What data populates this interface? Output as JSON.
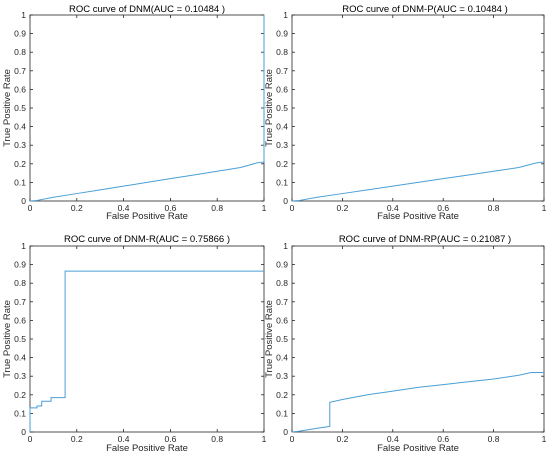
{
  "figure": {
    "line_color": "#4a9fd5",
    "axis_color": "#262626"
  },
  "chart_data": [
    {
      "type": "line",
      "title": "ROC curve of DNM(AUC = 0.10484 )",
      "xlabel": "False Positive Rate",
      "ylabel": "True Positive Rate",
      "xlim": [
        0,
        1
      ],
      "ylim": [
        0,
        1
      ],
      "xticks": [
        "0",
        "0.2",
        "0.4",
        "0.6",
        "0.8",
        "1"
      ],
      "yticks": [
        "0",
        "0.1",
        "0.2",
        "0.3",
        "0.4",
        "0.5",
        "0.6",
        "0.7",
        "0.8",
        "0.9",
        "1"
      ],
      "grid": false,
      "series": [
        {
          "x": [
            0,
            0.03,
            0.1,
            0.2,
            0.3,
            0.4,
            0.5,
            0.6,
            0.7,
            0.8,
            0.9,
            0.97,
            1,
            1
          ],
          "y": [
            0,
            0.003,
            0.02,
            0.04,
            0.06,
            0.08,
            0.1,
            0.12,
            0.14,
            0.16,
            0.18,
            0.205,
            0.21,
            1
          ]
        }
      ]
    },
    {
      "type": "line",
      "title": "ROC curve of DNM-P(AUC = 0.10484 )",
      "xlabel": "False Positive Rate",
      "ylabel": "True Positive Rate",
      "xlim": [
        0,
        1
      ],
      "ylim": [
        0,
        1
      ],
      "xticks": [
        "0",
        "0.2",
        "0.4",
        "0.6",
        "0.8",
        "1"
      ],
      "yticks": [
        "0",
        "0.1",
        "0.2",
        "0.3",
        "0.4",
        "0.5",
        "0.6",
        "0.7",
        "0.8",
        "0.9",
        "1"
      ],
      "grid": false,
      "series": [
        {
          "x": [
            0,
            0.03,
            0.1,
            0.2,
            0.3,
            0.4,
            0.5,
            0.6,
            0.7,
            0.8,
            0.9,
            0.97,
            1
          ],
          "y": [
            0,
            0.003,
            0.02,
            0.04,
            0.06,
            0.08,
            0.1,
            0.12,
            0.14,
            0.16,
            0.18,
            0.205,
            0.21
          ]
        }
      ]
    },
    {
      "type": "line",
      "title": "ROC curve of DNM-R(AUC = 0.75866 )",
      "xlabel": "False Positive Rate",
      "ylabel": "True Positive Rate",
      "xlim": [
        0,
        1
      ],
      "ylim": [
        0,
        1
      ],
      "xticks": [
        "0",
        "0.2",
        "0.4",
        "0.6",
        "0.8",
        "1"
      ],
      "yticks": [
        "0",
        "0.1",
        "0.2",
        "0.3",
        "0.4",
        "0.5",
        "0.6",
        "0.7",
        "0.8",
        "0.9",
        "1"
      ],
      "grid": false,
      "series": [
        {
          "x": [
            0,
            0,
            0.03,
            0.03,
            0.05,
            0.05,
            0.09,
            0.09,
            0.15,
            0.15,
            1
          ],
          "y": [
            0,
            0.13,
            0.13,
            0.14,
            0.14,
            0.165,
            0.165,
            0.185,
            0.185,
            0.865,
            0.865
          ]
        }
      ]
    },
    {
      "type": "line",
      "title": "ROC curve of DNM-RP(AUC = 0.21087 )",
      "xlabel": "False Positive Rate",
      "ylabel": "True Positive Rate",
      "xlim": [
        0,
        1
      ],
      "ylim": [
        0,
        1
      ],
      "xticks": [
        "0",
        "0.2",
        "0.4",
        "0.6",
        "0.8",
        "1"
      ],
      "yticks": [
        "0",
        "0.1",
        "0.2",
        "0.3",
        "0.4",
        "0.5",
        "0.6",
        "0.7",
        "0.8",
        "0.9",
        "1"
      ],
      "grid": false,
      "series": [
        {
          "x": [
            0,
            0.03,
            0.1,
            0.15,
            0.15,
            0.2,
            0.3,
            0.4,
            0.5,
            0.6,
            0.7,
            0.8,
            0.9,
            0.95,
            1
          ],
          "y": [
            0,
            0.005,
            0.02,
            0.03,
            0.16,
            0.175,
            0.2,
            0.22,
            0.24,
            0.255,
            0.27,
            0.285,
            0.305,
            0.32,
            0.32
          ]
        }
      ]
    }
  ]
}
